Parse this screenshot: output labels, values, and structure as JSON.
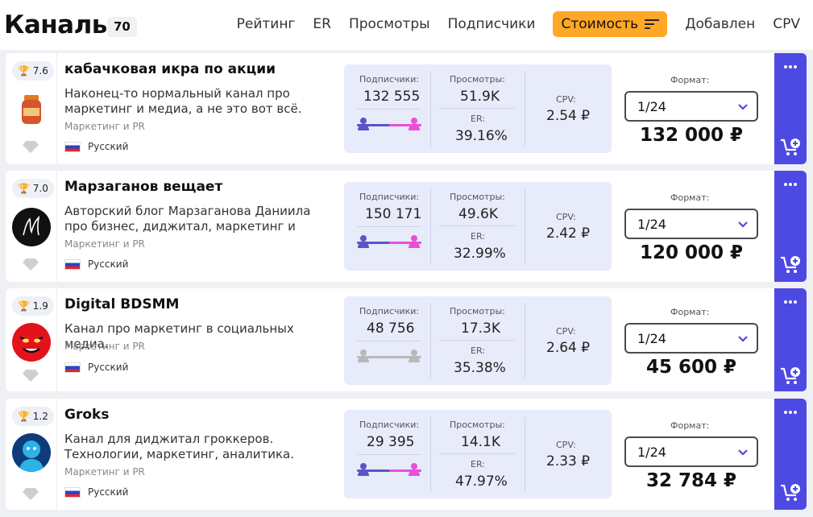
{
  "header": {
    "title": "Каналы",
    "count": "70",
    "sort": [
      "Рейтинг",
      "ER",
      "Просмотры",
      "Подписчики",
      "Стоимость",
      "Добавлен",
      "CPV"
    ],
    "active_sort": "Стоимость"
  },
  "labels": {
    "subscribers": "Подписчики:",
    "views": "Просмотры:",
    "er": "ER:",
    "cpv": "CPV:",
    "format": "Формат:"
  },
  "channels": [
    {
      "rating": "7.6",
      "name": "кабачковая икра по акции",
      "description": "Наконец-то нормальный канал про маркетинг и медиа, а не это вот всё. Текст…",
      "category": "Маркетинг и PR",
      "language": "Русский",
      "subscribers": "132 555",
      "views": "51.9K",
      "er": "39.16%",
      "cpv": "2.54 ₽",
      "format": "1/24",
      "price": "132 000 ₽",
      "gender_male_fraction": 0.5,
      "gender_known": true,
      "avatar": "jar-icon"
    },
    {
      "rating": "7.0",
      "name": "Марзаганов вещает",
      "description": "Авторский блог Марзаганова Даниила про бизнес, диджитал, маркетинг и дизайн. С…",
      "category": "Маркетинг и PR",
      "language": "Русский",
      "subscribers": "150 171",
      "views": "49.6K",
      "er": "32.99%",
      "cpv": "2.42 ₽",
      "format": "1/24",
      "price": "120 000 ₽",
      "gender_male_fraction": 0.5,
      "gender_known": true,
      "avatar": "signature-logo-icon"
    },
    {
      "rating": "1.9",
      "name": "Digital BDSMM",
      "description": "Канал про маркетинг в социальных медиа.",
      "category": "Маркетинг и PR",
      "language": "Русский",
      "subscribers": "48 756",
      "views": "17.3K",
      "er": "35.38%",
      "cpv": "2.64 ₽",
      "format": "1/24",
      "price": "45 600 ₽",
      "gender_male_fraction": 0.5,
      "gender_known": false,
      "avatar": "devil-face-icon"
    },
    {
      "rating": "1.2",
      "name": "Groks",
      "description": "Канал для диджитал гроккеров. Технологии, маркетинг, аналитика.",
      "category": "Маркетинг и PR",
      "language": "Русский",
      "subscribers": "29 395",
      "views": "14.1K",
      "er": "47.97%",
      "cpv": "2.33 ₽",
      "format": "1/24",
      "price": "32 784 ₽",
      "gender_male_fraction": 0.5,
      "gender_known": true,
      "avatar": "blue-face-icon"
    }
  ],
  "colors": {
    "accent": "#4d49e3",
    "active_sort": "#ffa726",
    "stats_bg": "#e8ebfa",
    "male": "#5b54c8",
    "female": "#e94fd8",
    "unknown": "#b8b8b8"
  }
}
